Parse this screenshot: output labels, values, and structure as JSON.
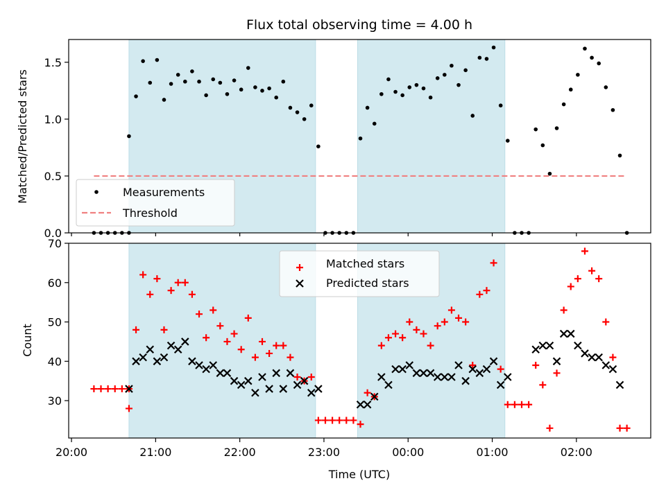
{
  "chart_data": [
    {
      "type": "scatter",
      "title": "Flux total observing time = 4.00 h",
      "xlabel": "",
      "ylabel": "Matched/Predicted stars",
      "ylim": [
        0,
        1.7
      ],
      "yticks": [
        "0.0",
        "0.5",
        "1.0",
        "1.5"
      ],
      "shaded_intervals": [
        [
          "20:41",
          "22:54"
        ],
        [
          "23:24",
          "01:09"
        ]
      ],
      "shade_color": "#d3eaf0",
      "legend": {
        "location": "lower-left",
        "entries": [
          "Measurements",
          "Threshold"
        ]
      },
      "threshold": {
        "name": "Threshold",
        "value": 0.5,
        "x_start": "20:16",
        "x_end": "02:34",
        "color": "#f08080"
      },
      "series": [
        {
          "name": "Measurements",
          "marker": "dot",
          "color": "#000000",
          "points": [
            [
              "20:16",
              0
            ],
            [
              "20:21",
              0
            ],
            [
              "20:26",
              0
            ],
            [
              "20:31",
              0
            ],
            [
              "20:36",
              0
            ],
            [
              "20:41",
              0
            ],
            [
              "20:41",
              0.85
            ],
            [
              "20:46",
              1.2
            ],
            [
              "20:51",
              1.51
            ],
            [
              "20:56",
              1.32
            ],
            [
              "21:01",
              1.52
            ],
            [
              "21:06",
              1.17
            ],
            [
              "21:11",
              1.31
            ],
            [
              "21:16",
              1.39
            ],
            [
              "21:21",
              1.33
            ],
            [
              "21:26",
              1.42
            ],
            [
              "21:31",
              1.33
            ],
            [
              "21:36",
              1.21
            ],
            [
              "21:41",
              1.35
            ],
            [
              "21:46",
              1.32
            ],
            [
              "21:51",
              1.22
            ],
            [
              "21:56",
              1.34
            ],
            [
              "22:01",
              1.26
            ],
            [
              "22:06",
              1.45
            ],
            [
              "22:11",
              1.28
            ],
            [
              "22:16",
              1.25
            ],
            [
              "22:21",
              1.27
            ],
            [
              "22:26",
              1.19
            ],
            [
              "22:31",
              1.33
            ],
            [
              "22:36",
              1.1
            ],
            [
              "22:41",
              1.06
            ],
            [
              "22:46",
              1.0
            ],
            [
              "22:51",
              1.12
            ],
            [
              "22:56",
              0.76
            ],
            [
              "23:01",
              0
            ],
            [
              "23:06",
              0
            ],
            [
              "23:11",
              0
            ],
            [
              "23:16",
              0
            ],
            [
              "23:21",
              0
            ],
            [
              "23:26",
              0.83
            ],
            [
              "23:31",
              1.1
            ],
            [
              "23:36",
              0.96
            ],
            [
              "23:41",
              1.22
            ],
            [
              "23:46",
              1.35
            ],
            [
              "23:51",
              1.24
            ],
            [
              "23:56",
              1.21
            ],
            [
              "00:01",
              1.28
            ],
            [
              "00:06",
              1.3
            ],
            [
              "00:11",
              1.27
            ],
            [
              "00:16",
              1.19
            ],
            [
              "00:21",
              1.36
            ],
            [
              "00:26",
              1.39
            ],
            [
              "00:31",
              1.47
            ],
            [
              "00:36",
              1.3
            ],
            [
              "00:41",
              1.43
            ],
            [
              "00:46",
              1.03
            ],
            [
              "00:51",
              1.54
            ],
            [
              "00:56",
              1.53
            ],
            [
              "01:01",
              1.63
            ],
            [
              "01:06",
              1.12
            ],
            [
              "01:11",
              0.81
            ],
            [
              "01:16",
              0
            ],
            [
              "01:21",
              0
            ],
            [
              "01:26",
              0
            ],
            [
              "01:31",
              0.91
            ],
            [
              "01:36",
              0.77
            ],
            [
              "01:41",
              0.52
            ],
            [
              "01:46",
              0.92
            ],
            [
              "01:51",
              1.13
            ],
            [
              "01:56",
              1.26
            ],
            [
              "02:01",
              1.39
            ],
            [
              "02:06",
              1.62
            ],
            [
              "02:11",
              1.54
            ],
            [
              "02:16",
              1.49
            ],
            [
              "02:21",
              1.28
            ],
            [
              "02:26",
              1.08
            ],
            [
              "02:31",
              0.68
            ],
            [
              "02:36",
              0
            ]
          ]
        }
      ]
    },
    {
      "type": "scatter",
      "title": "",
      "xlabel": "Time (UTC)",
      "ylabel": "Count",
      "ylim": [
        20.5,
        70
      ],
      "yticks": [
        "30",
        "40",
        "50",
        "60",
        "70"
      ],
      "xlim": [
        "19:58",
        "02:53"
      ],
      "xticks": [
        "20:00",
        "21:00",
        "22:00",
        "23:00",
        "00:00",
        "01:00",
        "02:00"
      ],
      "shaded_intervals": [
        [
          "20:41",
          "22:54"
        ],
        [
          "23:24",
          "01:09"
        ]
      ],
      "shade_color": "#d3eaf0",
      "legend": {
        "location": "top-center",
        "entries": [
          "Matched stars",
          "Predicted stars"
        ]
      },
      "series": [
        {
          "name": "Matched stars",
          "marker": "plus",
          "color": "#ff0000",
          "points": [
            [
              "20:16",
              33
            ],
            [
              "20:21",
              33
            ],
            [
              "20:26",
              33
            ],
            [
              "20:31",
              33
            ],
            [
              "20:36",
              33
            ],
            [
              "20:41",
              33
            ],
            [
              "20:41",
              28
            ],
            [
              "20:46",
              48
            ],
            [
              "20:51",
              62
            ],
            [
              "20:56",
              57
            ],
            [
              "21:01",
              61
            ],
            [
              "21:06",
              48
            ],
            [
              "21:11",
              58
            ],
            [
              "21:16",
              60
            ],
            [
              "21:21",
              60
            ],
            [
              "21:26",
              57
            ],
            [
              "21:31",
              52
            ],
            [
              "21:36",
              46
            ],
            [
              "21:41",
              53
            ],
            [
              "21:46",
              49
            ],
            [
              "21:51",
              45
            ],
            [
              "21:56",
              47
            ],
            [
              "22:01",
              43
            ],
            [
              "22:06",
              51
            ],
            [
              "22:11",
              41
            ],
            [
              "22:16",
              45
            ],
            [
              "22:21",
              42
            ],
            [
              "22:26",
              44
            ],
            [
              "22:31",
              44
            ],
            [
              "22:36",
              41
            ],
            [
              "22:41",
              36
            ],
            [
              "22:46",
              35
            ],
            [
              "22:51",
              36
            ],
            [
              "22:56",
              25
            ],
            [
              "23:01",
              25
            ],
            [
              "23:06",
              25
            ],
            [
              "23:11",
              25
            ],
            [
              "23:16",
              25
            ],
            [
              "23:21",
              25
            ],
            [
              "23:26",
              24
            ],
            [
              "23:31",
              32
            ],
            [
              "23:36",
              31
            ],
            [
              "23:41",
              44
            ],
            [
              "23:46",
              46
            ],
            [
              "23:51",
              47
            ],
            [
              "23:56",
              46
            ],
            [
              "00:01",
              50
            ],
            [
              "00:06",
              48
            ],
            [
              "00:11",
              47
            ],
            [
              "00:16",
              44
            ],
            [
              "00:21",
              49
            ],
            [
              "00:26",
              50
            ],
            [
              "00:31",
              53
            ],
            [
              "00:36",
              51
            ],
            [
              "00:41",
              50
            ],
            [
              "00:46",
              39
            ],
            [
              "00:51",
              57
            ],
            [
              "00:56",
              58
            ],
            [
              "01:01",
              65
            ],
            [
              "01:06",
              38
            ],
            [
              "01:11",
              29
            ],
            [
              "01:16",
              29
            ],
            [
              "01:21",
              29
            ],
            [
              "01:26",
              29
            ],
            [
              "01:31",
              39
            ],
            [
              "01:36",
              34
            ],
            [
              "01:41",
              23
            ],
            [
              "01:46",
              37
            ],
            [
              "01:51",
              53
            ],
            [
              "01:56",
              59
            ],
            [
              "02:01",
              61
            ],
            [
              "02:06",
              68
            ],
            [
              "02:11",
              63
            ],
            [
              "02:16",
              61
            ],
            [
              "02:21",
              50
            ],
            [
              "02:26",
              41
            ],
            [
              "02:31",
              23
            ],
            [
              "02:36",
              23
            ]
          ]
        },
        {
          "name": "Predicted stars",
          "marker": "cross",
          "color": "#000000",
          "points": [
            [
              "20:41",
              33
            ],
            [
              "20:46",
              40
            ],
            [
              "20:51",
              41
            ],
            [
              "20:56",
              43
            ],
            [
              "21:01",
              40
            ],
            [
              "21:06",
              41
            ],
            [
              "21:11",
              44
            ],
            [
              "21:16",
              43
            ],
            [
              "21:21",
              45
            ],
            [
              "21:26",
              40
            ],
            [
              "21:31",
              39
            ],
            [
              "21:36",
              38
            ],
            [
              "21:41",
              39
            ],
            [
              "21:46",
              37
            ],
            [
              "21:51",
              37
            ],
            [
              "21:56",
              35
            ],
            [
              "22:01",
              34
            ],
            [
              "22:06",
              35
            ],
            [
              "22:11",
              32
            ],
            [
              "22:16",
              36
            ],
            [
              "22:21",
              33
            ],
            [
              "22:26",
              37
            ],
            [
              "22:31",
              33
            ],
            [
              "22:36",
              37
            ],
            [
              "22:41",
              34
            ],
            [
              "22:46",
              35
            ],
            [
              "22:51",
              32
            ],
            [
              "22:56",
              33
            ],
            [
              "23:26",
              29
            ],
            [
              "23:31",
              29
            ],
            [
              "23:36",
              31
            ],
            [
              "23:41",
              36
            ],
            [
              "23:46",
              34
            ],
            [
              "23:51",
              38
            ],
            [
              "23:56",
              38
            ],
            [
              "00:01",
              39
            ],
            [
              "00:06",
              37
            ],
            [
              "00:11",
              37
            ],
            [
              "00:16",
              37
            ],
            [
              "00:21",
              36
            ],
            [
              "00:26",
              36
            ],
            [
              "00:31",
              36
            ],
            [
              "00:36",
              39
            ],
            [
              "00:41",
              35
            ],
            [
              "00:46",
              38
            ],
            [
              "00:51",
              37
            ],
            [
              "00:56",
              38
            ],
            [
              "01:01",
              40
            ],
            [
              "01:06",
              34
            ],
            [
              "01:11",
              36
            ],
            [
              "01:31",
              43
            ],
            [
              "01:36",
              44
            ],
            [
              "01:41",
              44
            ],
            [
              "01:46",
              40
            ],
            [
              "01:51",
              47
            ],
            [
              "01:56",
              47
            ],
            [
              "02:01",
              44
            ],
            [
              "02:06",
              42
            ],
            [
              "02:11",
              41
            ],
            [
              "02:16",
              41
            ],
            [
              "02:21",
              39
            ],
            [
              "02:26",
              38
            ],
            [
              "02:31",
              34
            ]
          ]
        }
      ]
    }
  ]
}
